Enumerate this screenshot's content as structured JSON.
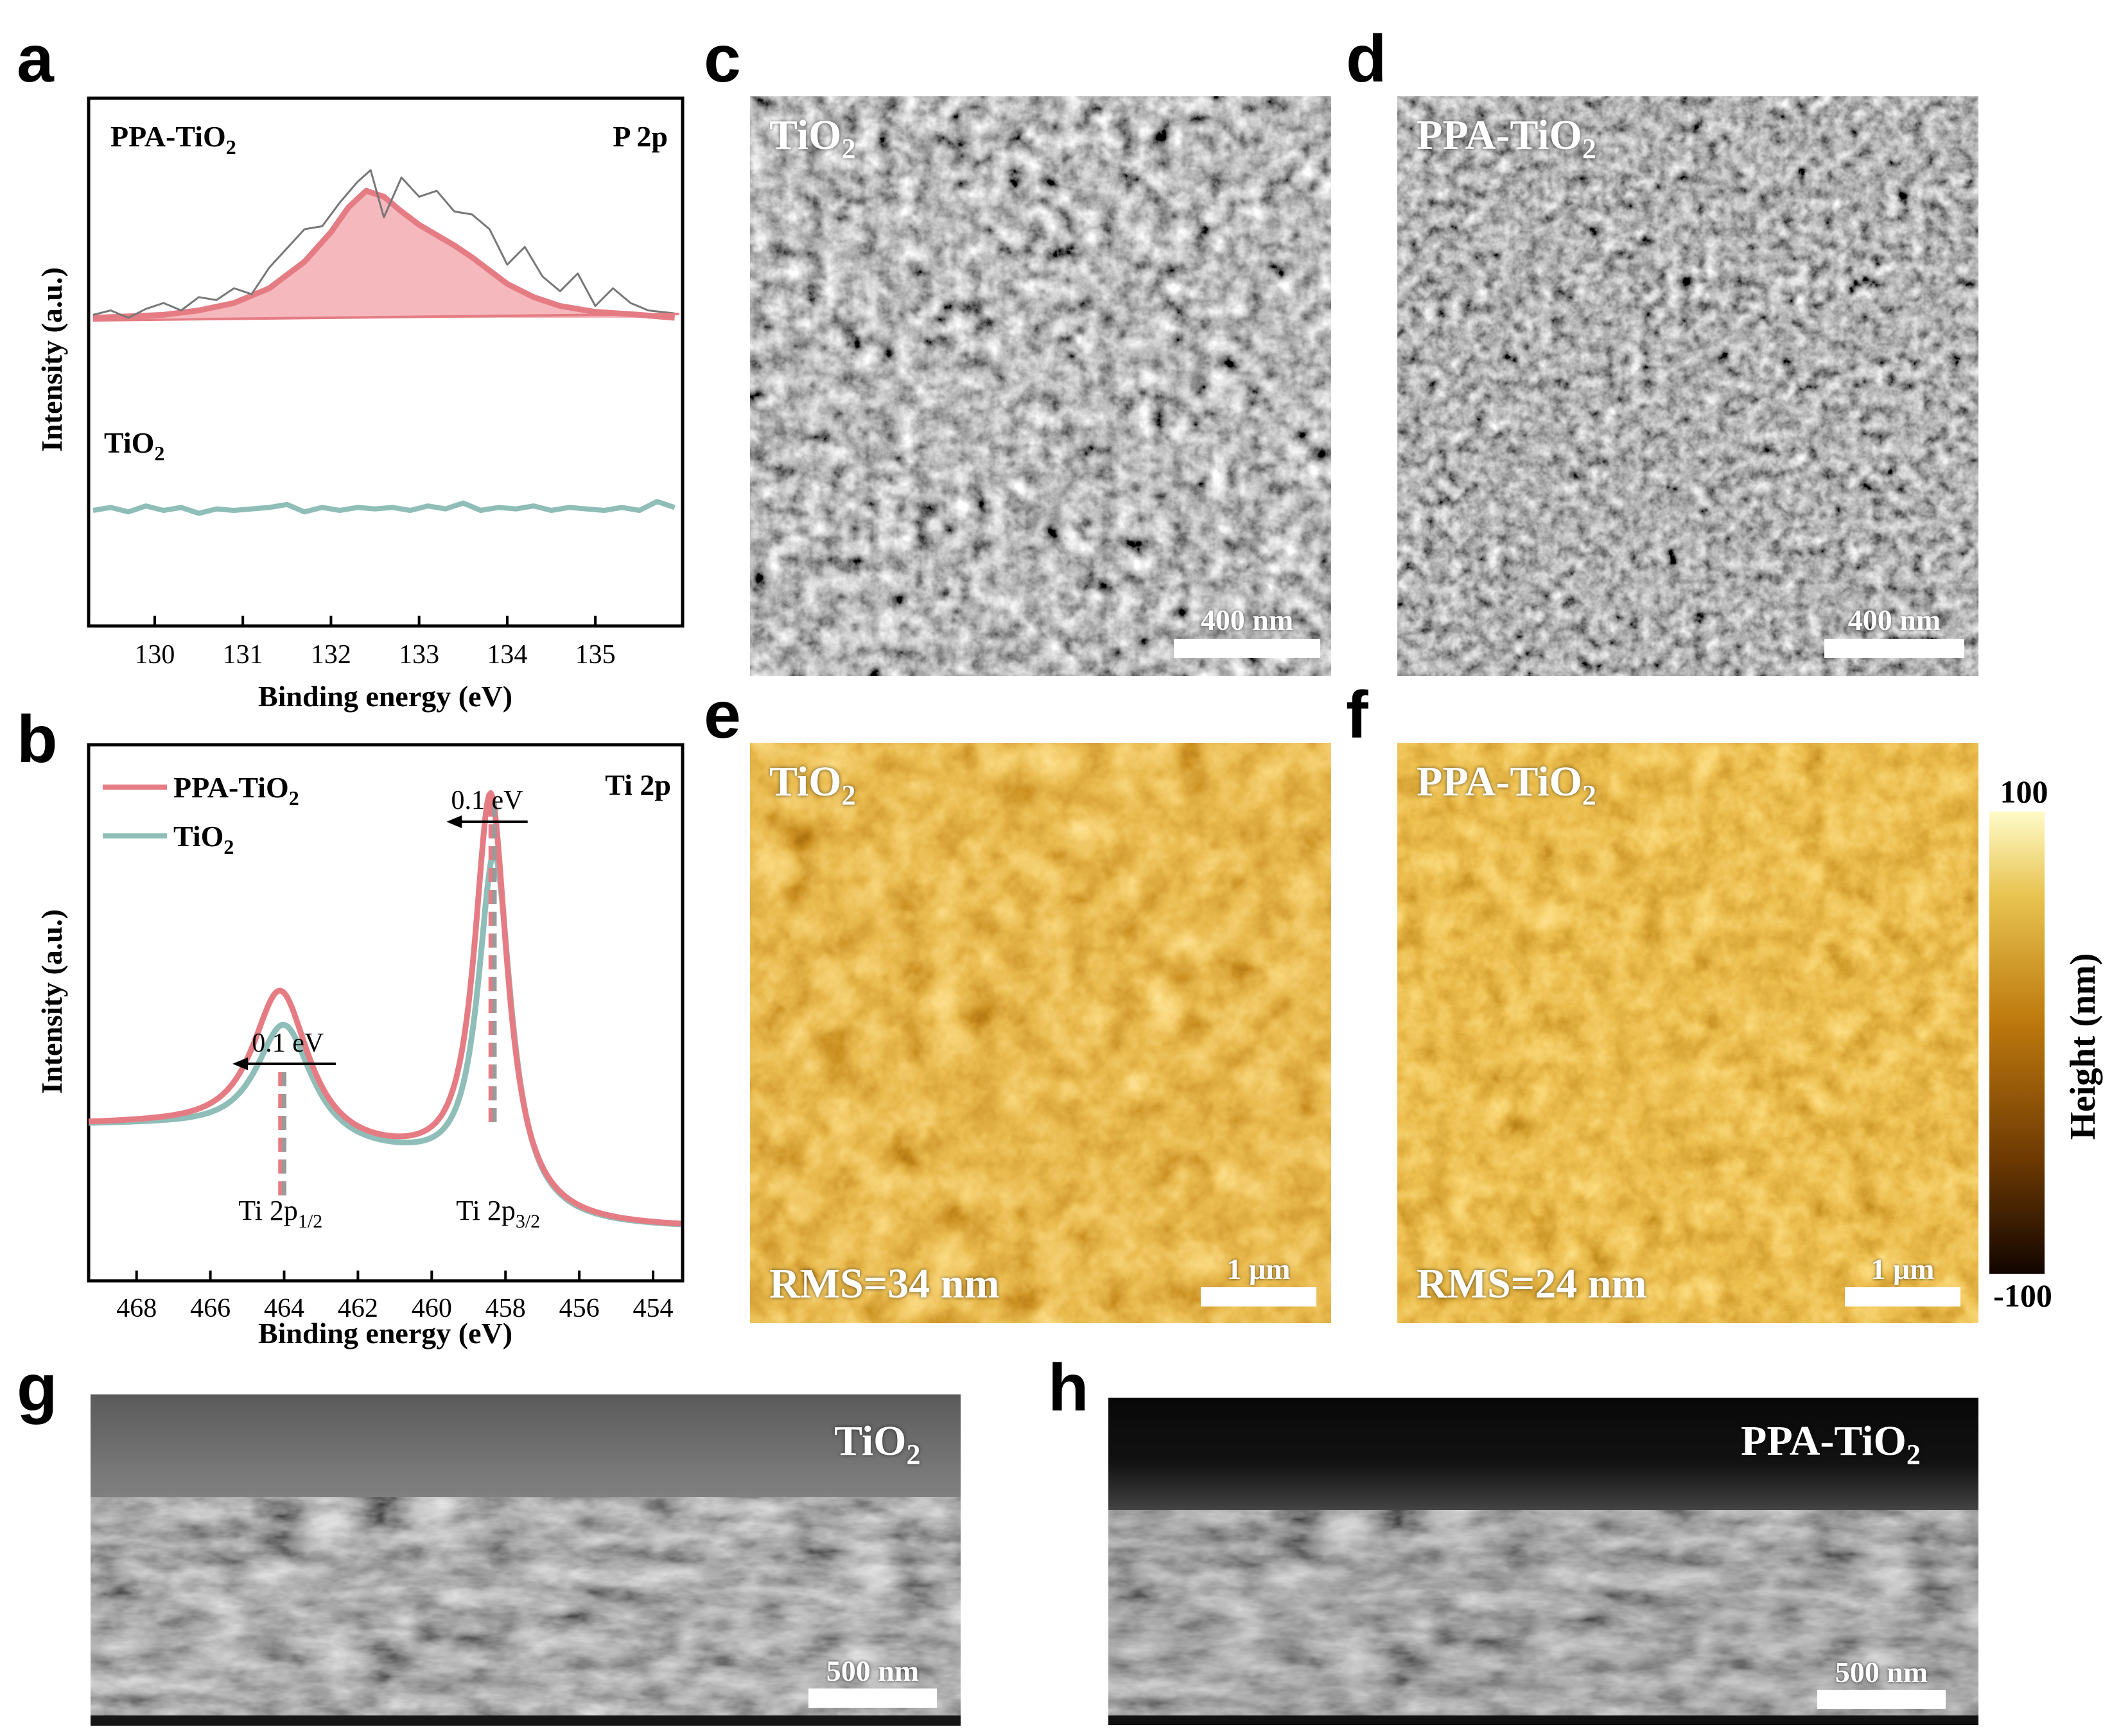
{
  "panel_letters": {
    "a": "a",
    "b": "b",
    "c": "c",
    "d": "d",
    "e": "e",
    "f": "f",
    "g": "g",
    "h": "h"
  },
  "colors": {
    "ppa": "#e57c84",
    "ppa_fill": "#f5b8bd",
    "tio2": "#8fbdb8",
    "raw": "#777777"
  },
  "chart_data": [
    {
      "panel": "a",
      "type": "line",
      "title": "",
      "xlabel": "Binding energy (eV)",
      "ylabel": "Intensity (a.u.)",
      "xlim": [
        135.99,
        129.25
      ],
      "x_reversed": false,
      "xticks": [
        130,
        131,
        132,
        133,
        134,
        135
      ],
      "xtick_labels": [
        "130",
        "131",
        "132",
        "133",
        "134",
        "135"
      ],
      "tag_left": "PPA-TiO",
      "tag_left_sub": "2",
      "tag_right": "P 2p",
      "lower_tag": "TiO",
      "lower_tag_sub": "2",
      "series": [
        {
          "name": "PPA-TiO2 raw",
          "x": [
            129.3,
            129.5,
            129.7,
            129.9,
            130.1,
            130.3,
            130.5,
            130.7,
            130.9,
            131.1,
            131.3,
            131.5,
            131.7,
            131.9,
            132.1,
            132.3,
            132.45,
            132.6,
            132.8,
            133.0,
            133.2,
            133.4,
            133.6,
            133.8,
            134.0,
            134.2,
            134.4,
            134.6,
            134.8,
            135.0,
            135.2,
            135.4,
            135.6,
            135.9
          ],
          "y": [
            0.02,
            0.05,
            0.0,
            0.06,
            0.1,
            0.05,
            0.14,
            0.12,
            0.2,
            0.16,
            0.34,
            0.47,
            0.6,
            0.62,
            0.78,
            0.92,
            1.0,
            0.68,
            0.95,
            0.82,
            0.86,
            0.72,
            0.7,
            0.6,
            0.36,
            0.48,
            0.28,
            0.18,
            0.3,
            0.08,
            0.2,
            0.1,
            0.05,
            0.03
          ]
        },
        {
          "name": "PPA-TiO2 fit",
          "x": [
            129.3,
            129.7,
            130.1,
            130.5,
            130.9,
            131.3,
            131.7,
            132.0,
            132.2,
            132.4,
            132.6,
            132.8,
            133.0,
            133.2,
            133.4,
            133.6,
            133.8,
            134.0,
            134.3,
            134.6,
            135.0,
            135.5,
            135.9
          ],
          "y": [
            0.0,
            0.01,
            0.02,
            0.05,
            0.1,
            0.2,
            0.38,
            0.58,
            0.75,
            0.86,
            0.82,
            0.72,
            0.63,
            0.56,
            0.49,
            0.41,
            0.32,
            0.23,
            0.14,
            0.08,
            0.04,
            0.02,
            0.0
          ]
        },
        {
          "name": "TiO2",
          "x": [
            129.3,
            129.5,
            129.7,
            129.9,
            130.1,
            130.3,
            130.5,
            130.7,
            130.9,
            131.1,
            131.3,
            131.5,
            131.7,
            131.9,
            132.1,
            132.3,
            132.5,
            132.7,
            132.9,
            133.1,
            133.3,
            133.5,
            133.7,
            133.9,
            134.1,
            134.3,
            134.5,
            134.7,
            134.9,
            135.1,
            135.3,
            135.5,
            135.7,
            135.9
          ],
          "y": [
            0.0,
            0.02,
            -0.01,
            0.03,
            0.0,
            0.02,
            -0.02,
            0.01,
            0.0,
            0.01,
            0.02,
            0.04,
            -0.01,
            0.02,
            0.0,
            0.02,
            0.01,
            0.02,
            0.0,
            0.03,
            0.01,
            0.05,
            0.0,
            0.02,
            0.01,
            0.03,
            0.0,
            0.02,
            0.01,
            0.0,
            0.02,
            0.0,
            0.06,
            0.02
          ]
        }
      ]
    },
    {
      "panel": "b",
      "type": "line",
      "title": "",
      "xlabel": "Binding energy (eV)",
      "ylabel": "Intensity (a.u.)",
      "xlim": [
        469.3,
        453.2
      ],
      "xticks": [
        468,
        466,
        464,
        462,
        460,
        458,
        456,
        454
      ],
      "xtick_labels": [
        "468",
        "466",
        "464",
        "462",
        "460",
        "458",
        "456",
        "454"
      ],
      "legend": [
        "PPA-TiO2",
        "TiO2"
      ],
      "legend_location": "top-left",
      "tag_right": "Ti 2p",
      "annotations": [
        {
          "text": "0.1 eV",
          "x": 463.9
        },
        {
          "text": "0.1 eV",
          "x": 458.5
        },
        {
          "text": "Ti 2p",
          "sub": "1/2",
          "x": 464.1
        },
        {
          "text": "Ti 2p",
          "sub": "3/2",
          "x": 458.2
        }
      ],
      "series": [
        {
          "name": "PPA-TiO2",
          "peaks": [
            {
              "center": 464.1,
              "height": 0.38
            },
            {
              "center": 458.4,
              "height": 1.0
            }
          ]
        },
        {
          "name": "TiO2",
          "peaks": [
            {
              "center": 464.0,
              "height": 0.3
            },
            {
              "center": 458.3,
              "height": 0.86
            }
          ]
        }
      ]
    }
  ],
  "panels": {
    "c": {
      "label": "TiO",
      "sub": "2",
      "scalebar": "400 nm"
    },
    "d": {
      "label": "PPA-TiO",
      "sub": "2",
      "scalebar": "400 nm"
    },
    "e": {
      "label": "TiO",
      "sub": "2",
      "rms": "RMS=34 nm",
      "scalebar": "1 μm"
    },
    "f": {
      "label": "PPA-TiO",
      "sub": "2",
      "rms": "RMS=24 nm",
      "scalebar": "1 μm"
    },
    "g": {
      "label": "TiO",
      "sub": "2",
      "scalebar": "500 nm"
    },
    "h": {
      "label": "PPA-TiO",
      "sub": "2",
      "scalebar": "500 nm"
    }
  },
  "colorbar": {
    "max": "100",
    "min": "-100",
    "label": "Height (nm)"
  }
}
